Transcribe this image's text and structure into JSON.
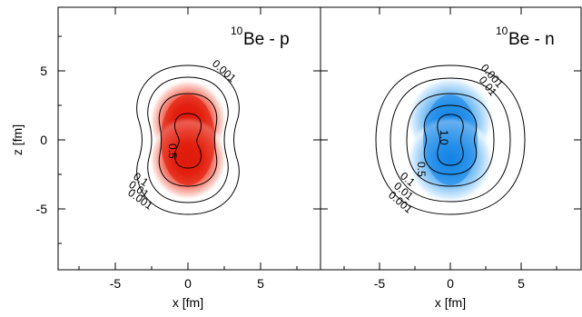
{
  "chart_data": [
    {
      "type": "heatmap",
      "panel_label": {
        "superscript": "10",
        "text": "Be - p"
      },
      "colormap": "red",
      "color": "#e8200e",
      "xlabel": "x [fm]",
      "ylabel": "z [fm]",
      "xlim": [
        -9,
        9
      ],
      "ylim": [
        -9.5,
        9.5
      ],
      "xticks": [
        "-5",
        "0",
        "5"
      ],
      "yticks": [
        "5",
        "0",
        "-5"
      ],
      "density": {
        "x_extent_fm": 1.1,
        "z_extent_fm": 2.3,
        "lobe_separation_fm": 1.2
      },
      "contour_levels": [
        0.5,
        0.1,
        0.01,
        0.001
      ],
      "contour_labels": [
        "0.5",
        "0.1",
        "0.01",
        "0.001",
        "0.001",
        "0.01",
        "0.1",
        "0.5"
      ]
    },
    {
      "type": "heatmap",
      "panel_label": {
        "superscript": "10",
        "text": "Be - n"
      },
      "colormap": "blue",
      "color": "#1e88e5",
      "xlabel": "x [fm]",
      "ylabel": "",
      "xlim": [
        -9,
        9
      ],
      "ylim": [
        -9.5,
        9.5
      ],
      "xticks": [
        "-5",
        "0",
        "5"
      ],
      "yticks": [],
      "density": {
        "x_extent_fm": 1.2,
        "z_extent_fm": 2.4,
        "lobe_separation_fm": 1.1
      },
      "contour_levels": [
        1.0,
        0.5,
        0.1,
        0.01,
        0.001
      ],
      "contour_labels": [
        "1.0",
        "0.5",
        "0.1",
        "0.01",
        "0.001",
        "0.001",
        "0.01"
      ]
    }
  ]
}
